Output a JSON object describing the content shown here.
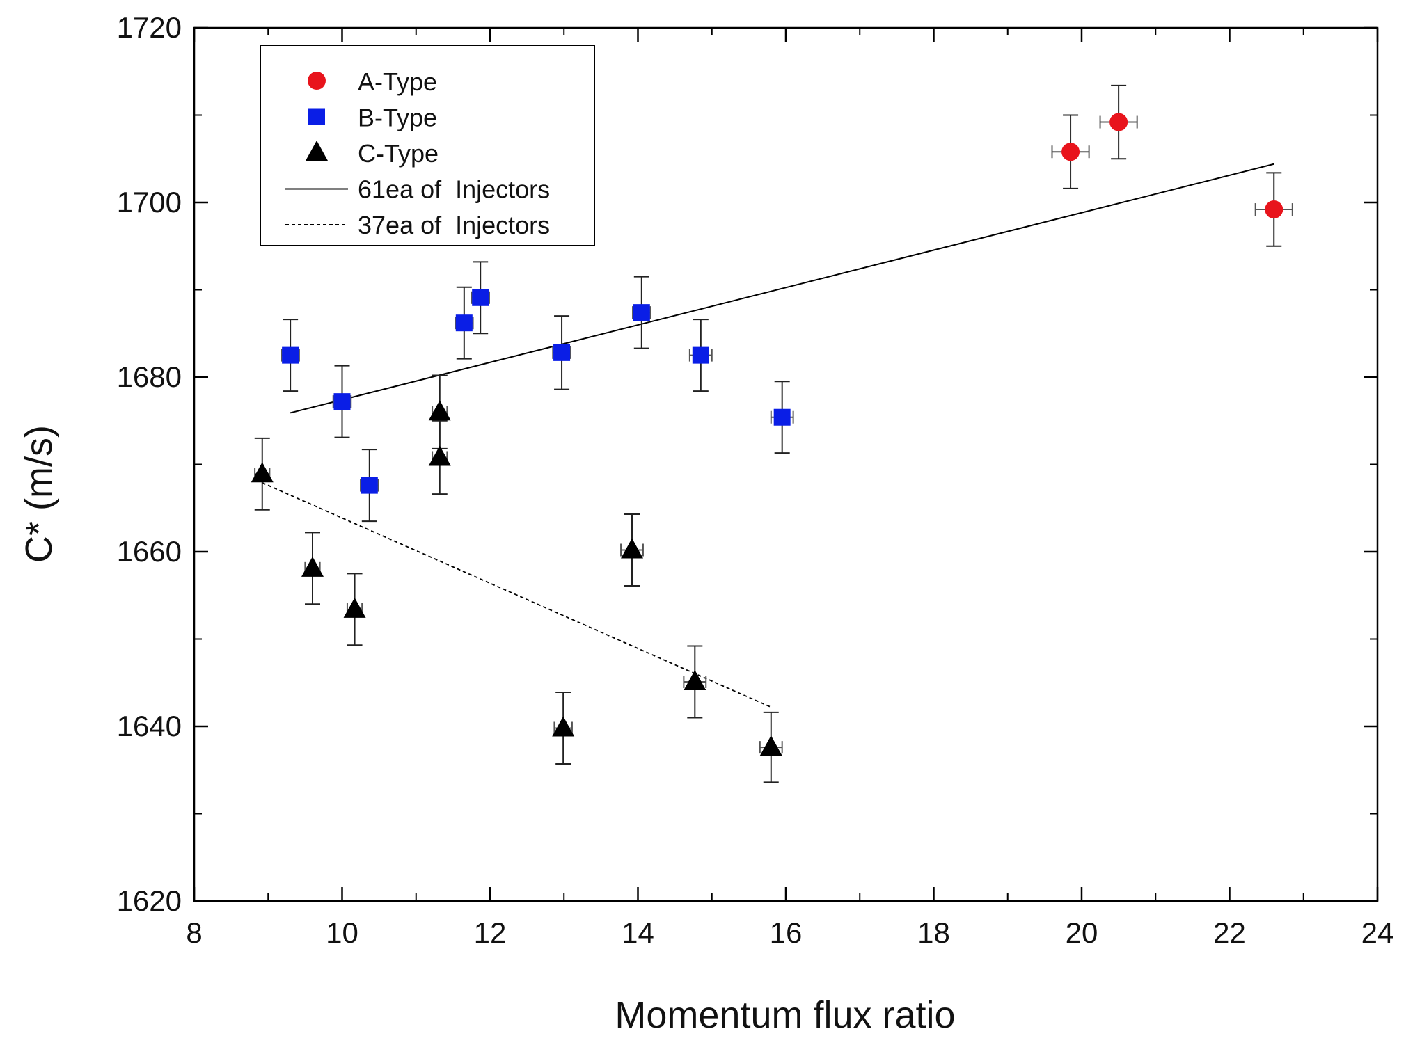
{
  "chart_data": {
    "type": "scatter",
    "title": "",
    "xlabel": "Momentum flux ratio",
    "ylabel": "C* (m/s)",
    "xlim": [
      8,
      24
    ],
    "ylim": [
      1620,
      1720
    ],
    "xticks": [
      8,
      10,
      12,
      14,
      16,
      18,
      20,
      22,
      24
    ],
    "yticks": [
      1620,
      1640,
      1660,
      1680,
      1700,
      1720
    ],
    "xtick_labels": [
      "8",
      "10",
      "12",
      "14",
      "16",
      "18",
      "20",
      "22",
      "24"
    ],
    "ytick_labels": [
      "1620",
      "1640",
      "1660",
      "1680",
      "1700",
      "1720"
    ],
    "x_minor_step": 1,
    "y_minor_step": 10,
    "grid": false,
    "legend_position": "top-left",
    "series": [
      {
        "name": "A-Type",
        "marker": "circle",
        "color": "#e8141c",
        "points": [
          {
            "x": 19.85,
            "y": 1705.8,
            "yerr": 4.2,
            "xerr": 0.25
          },
          {
            "x": 20.5,
            "y": 1709.2,
            "yerr": 4.2,
            "xerr": 0.25
          },
          {
            "x": 22.6,
            "y": 1699.2,
            "yerr": 4.2,
            "xerr": 0.25
          }
        ]
      },
      {
        "name": "B-Type",
        "marker": "square",
        "color": "#0a1ee6",
        "points": [
          {
            "x": 9.3,
            "y": 1682.5,
            "yerr": 4.1,
            "xerr": 0.12
          },
          {
            "x": 10.0,
            "y": 1677.2,
            "yerr": 4.1,
            "xerr": 0.12
          },
          {
            "x": 10.37,
            "y": 1667.6,
            "yerr": 4.1,
            "xerr": 0.12
          },
          {
            "x": 11.65,
            "y": 1686.2,
            "yerr": 4.1,
            "xerr": 0.12
          },
          {
            "x": 11.87,
            "y": 1689.1,
            "yerr": 4.1,
            "xerr": 0.12
          },
          {
            "x": 12.97,
            "y": 1682.8,
            "yerr": 4.2,
            "xerr": 0.12
          },
          {
            "x": 14.05,
            "y": 1687.4,
            "yerr": 4.1,
            "xerr": 0.12
          },
          {
            "x": 14.85,
            "y": 1682.5,
            "yerr": 4.1,
            "xerr": 0.15
          },
          {
            "x": 15.95,
            "y": 1675.4,
            "yerr": 4.1,
            "xerr": 0.15
          }
        ]
      },
      {
        "name": "C-Type",
        "marker": "triangle",
        "color": "#000000",
        "points": [
          {
            "x": 8.92,
            "y": 1668.9,
            "yerr": 4.1,
            "xerr": 0.1
          },
          {
            "x": 9.6,
            "y": 1658.1,
            "yerr": 4.1,
            "xerr": 0.1
          },
          {
            "x": 10.17,
            "y": 1653.4,
            "yerr": 4.1,
            "xerr": 0.1
          },
          {
            "x": 11.32,
            "y": 1676.0,
            "yerr": 4.2,
            "xerr": 0.1
          },
          {
            "x": 11.32,
            "y": 1670.8,
            "yerr": 4.2,
            "xerr": 0.1
          },
          {
            "x": 12.99,
            "y": 1639.8,
            "yerr": 4.1,
            "xerr": 0.12
          },
          {
            "x": 13.92,
            "y": 1660.2,
            "yerr": 4.1,
            "xerr": 0.15
          },
          {
            "x": 14.77,
            "y": 1645.1,
            "yerr": 4.1,
            "xerr": 0.15
          },
          {
            "x": 15.8,
            "y": 1637.6,
            "yerr": 4.0,
            "xerr": 0.15
          }
        ]
      }
    ],
    "fit_lines": [
      {
        "name": "61ea of  Injectors",
        "style": "solid",
        "color": "#000000",
        "x": [
          9.3,
          22.6
        ],
        "y": [
          1675.9,
          1704.4
        ]
      },
      {
        "name": "37ea of  Injectors",
        "style": "dashed",
        "color": "#000000",
        "x": [
          8.92,
          15.8
        ],
        "y": [
          1667.9,
          1642.2
        ]
      }
    ],
    "legend": [
      {
        "label": "A-Type",
        "kind": "marker",
        "ref": "A-Type"
      },
      {
        "label": "B-Type",
        "kind": "marker",
        "ref": "B-Type"
      },
      {
        "label": "C-Type",
        "kind": "marker",
        "ref": "C-Type"
      },
      {
        "label": "61ea of  Injectors",
        "kind": "line",
        "ref": "61ea of  Injectors"
      },
      {
        "label": "37ea of  Injectors",
        "kind": "line",
        "ref": "37ea of  Injectors"
      }
    ]
  }
}
